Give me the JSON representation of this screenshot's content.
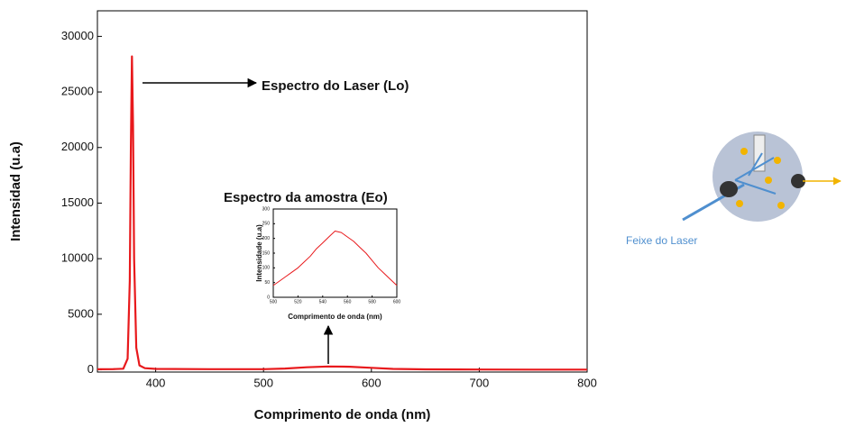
{
  "chart_data": [
    {
      "type": "line",
      "xlabel": "Comprimento de onda (nm)",
      "ylabel": "Intensidad (u.a)",
      "x": [
        346,
        360,
        370,
        374,
        376,
        377,
        378,
        379,
        380,
        382,
        385,
        390,
        400,
        450,
        500,
        520,
        540,
        560,
        580,
        600,
        620,
        650,
        700,
        750,
        800
      ],
      "series": [
        {
          "name": "Espectro do Laser (Lo)",
          "color": "#e8191c",
          "values": [
            50,
            60,
            100,
            1000,
            8000,
            20000,
            28200,
            22000,
            10000,
            2000,
            400,
            150,
            80,
            60,
            60,
            120,
            230,
            300,
            280,
            180,
            80,
            40,
            30,
            20,
            20
          ]
        }
      ],
      "xlim": [
        346,
        800
      ],
      "xticks": [
        400,
        500,
        600,
        700,
        800
      ],
      "ylim": [
        -200,
        32300
      ],
      "yticks": [
        0,
        5000,
        10000,
        15000,
        20000,
        25000,
        30000
      ],
      "annotations": [
        "Espectro do Laser (Lo)",
        "Espectro da amostra (Eo)"
      ]
    },
    {
      "type": "line",
      "xlabel": "Comprimento de onda (nm)",
      "ylabel": "Intensidade (u.a)",
      "x": [
        500,
        505,
        510,
        515,
        520,
        525,
        530,
        535,
        540,
        545,
        550,
        555,
        560,
        565,
        570,
        575,
        580,
        585,
        590,
        595,
        600
      ],
      "series": [
        {
          "name": "Espectro da amostra (Eo)",
          "color": "#e8191c",
          "values": [
            40,
            55,
            70,
            85,
            100,
            120,
            140,
            165,
            185,
            205,
            225,
            220,
            205,
            190,
            170,
            150,
            125,
            100,
            80,
            60,
            40
          ]
        }
      ],
      "xlim": [
        500,
        600
      ],
      "xticks": [
        500,
        520,
        540,
        560,
        580,
        600
      ],
      "ylim": [
        0,
        300
      ],
      "yticks": [
        0,
        50,
        100,
        150,
        200,
        250,
        300
      ]
    }
  ],
  "diagram": {
    "label": "Feixe do Laser"
  }
}
